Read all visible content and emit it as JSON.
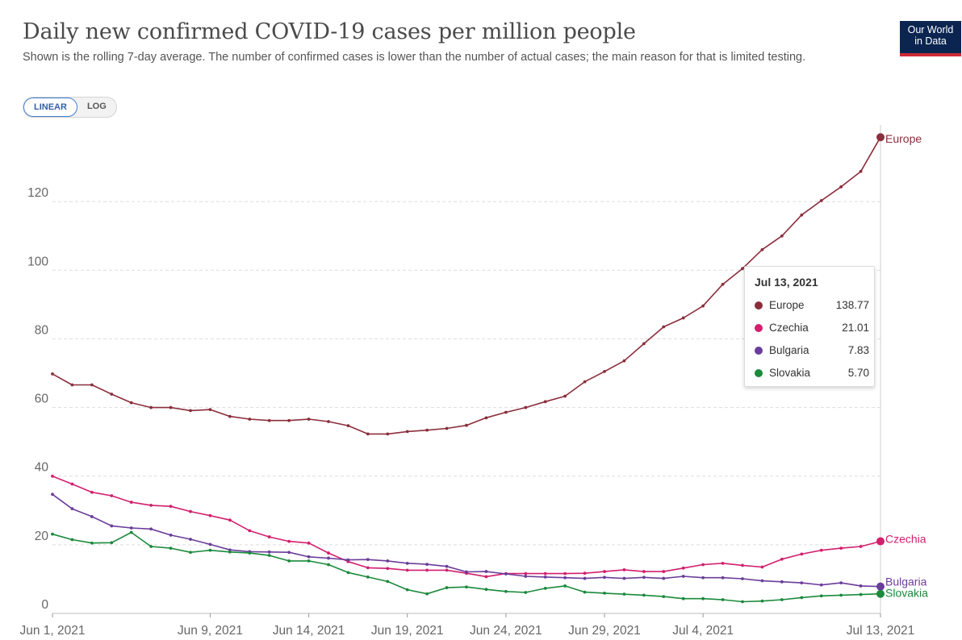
{
  "header": {
    "title": "Daily new confirmed COVID-19 cases per million people",
    "subtitle": "Shown is the rolling 7-day average. The number of confirmed cases is lower than the number of actual cases; the main reason for that is limited testing.",
    "logo_line1": "Our World",
    "logo_line2": "in Data"
  },
  "scale_toggle": {
    "linear": "LINEAR",
    "log": "LOG",
    "selected": "LINEAR"
  },
  "tooltip": {
    "date": "Jul 13, 2021",
    "rows": [
      {
        "name": "Europe",
        "value": "138.77",
        "color": "#8b2e3c"
      },
      {
        "name": "Czechia",
        "value": "21.01",
        "color": "#d21f6e"
      },
      {
        "name": "Bulgaria",
        "value": "7.83",
        "color": "#6a3d9a"
      },
      {
        "name": "Slovakia",
        "value": "5.70",
        "color": "#1a8a3c"
      }
    ]
  },
  "chart_data": {
    "type": "line",
    "x_ticks": [
      "Jun 1, 2021",
      "Jun 9, 2021",
      "Jun 14, 2021",
      "Jun 19, 2021",
      "Jun 24, 2021",
      "Jun 29, 2021",
      "Jul 4, 2021",
      "Jul 13, 2021"
    ],
    "x_tick_days": [
      0,
      8,
      13,
      18,
      23,
      28,
      33,
      42
    ],
    "y_ticks": [
      0,
      20,
      40,
      60,
      80,
      100,
      120
    ],
    "ylim": [
      0,
      140
    ],
    "grid": "horizontal dashed",
    "x_start": "2021-06-01",
    "x_end": "2021-07-13",
    "series": [
      {
        "name": "Europe",
        "color": "#8b2e3c",
        "values": [
          69.8,
          66.6,
          66.6,
          63.9,
          61.4,
          60.0,
          60.0,
          59.1,
          59.4,
          57.4,
          56.6,
          56.2,
          56.2,
          56.6,
          55.9,
          54.7,
          52.3,
          52.3,
          53.0,
          53.4,
          53.9,
          54.8,
          57.0,
          58.6,
          60.0,
          61.7,
          63.3,
          67.5,
          70.5,
          73.6,
          78.6,
          83.5,
          86.1,
          89.6,
          95.9,
          100.5,
          106.0,
          110.0,
          116.1,
          120.3,
          124.3,
          128.8,
          138.77
        ]
      },
      {
        "name": "Czechia",
        "color": "#d21f6e",
        "values": [
          40.0,
          37.7,
          35.3,
          34.3,
          32.4,
          31.5,
          31.2,
          29.7,
          28.5,
          27.2,
          24.1,
          22.3,
          21.0,
          20.5,
          17.6,
          15.1,
          13.3,
          13.1,
          12.6,
          12.6,
          12.6,
          11.7,
          10.7,
          11.6,
          11.6,
          11.6,
          11.6,
          11.7,
          12.2,
          12.7,
          12.2,
          12.2,
          13.2,
          14.2,
          14.6,
          14.0,
          13.5,
          15.8,
          17.3,
          18.4,
          19.0,
          19.5,
          21.01
        ]
      },
      {
        "name": "Bulgaria",
        "color": "#6a3d9a",
        "values": [
          34.7,
          30.5,
          28.2,
          25.5,
          24.9,
          24.6,
          22.8,
          21.6,
          20.1,
          18.5,
          18.0,
          17.9,
          17.8,
          16.5,
          16.1,
          15.6,
          15.7,
          15.3,
          14.6,
          14.3,
          13.7,
          12.1,
          12.2,
          11.5,
          10.8,
          10.6,
          10.4,
          10.2,
          10.5,
          10.2,
          10.5,
          10.2,
          10.8,
          10.4,
          10.4,
          10.1,
          9.5,
          9.2,
          8.9,
          8.3,
          8.9,
          8.0,
          7.83
        ]
      },
      {
        "name": "Slovakia",
        "color": "#1a8a3c",
        "values": [
          23.1,
          21.5,
          20.5,
          20.6,
          23.6,
          19.5,
          19.0,
          17.8,
          18.4,
          17.9,
          17.6,
          16.9,
          15.3,
          15.3,
          14.2,
          11.9,
          10.6,
          9.3,
          6.9,
          5.7,
          7.5,
          7.7,
          7.0,
          6.4,
          6.1,
          7.3,
          8.0,
          6.2,
          5.9,
          5.6,
          5.3,
          4.9,
          4.3,
          4.3,
          4.0,
          3.4,
          3.6,
          4.0,
          4.6,
          5.1,
          5.3,
          5.5,
          5.7
        ]
      }
    ]
  }
}
